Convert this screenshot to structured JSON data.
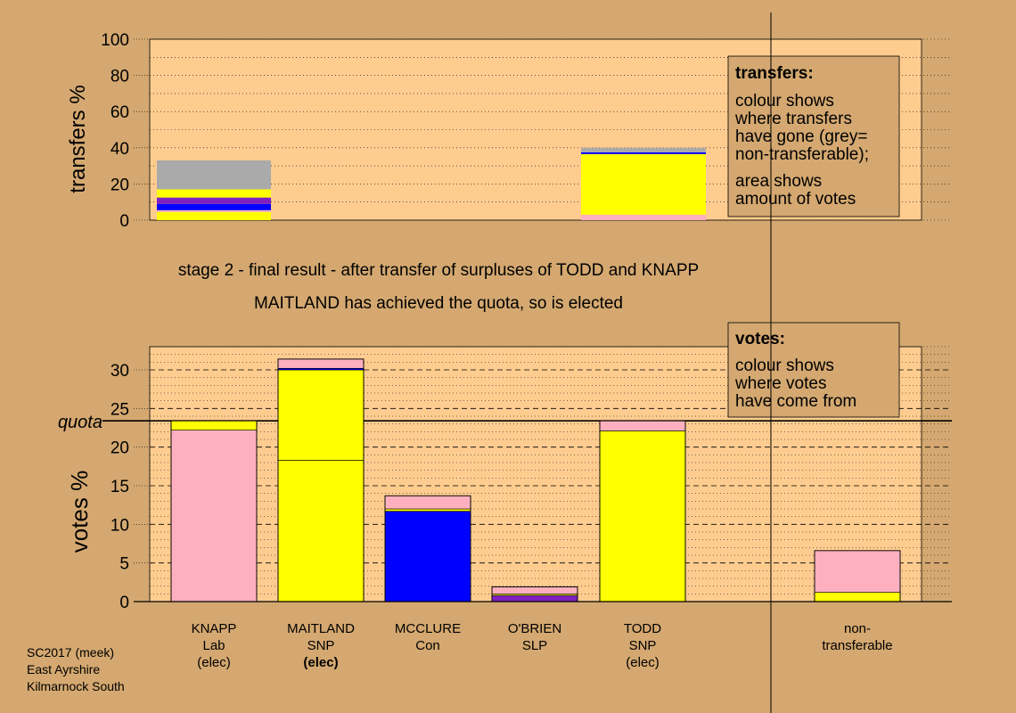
{
  "chart_data": [
    {
      "type": "bar",
      "ylabel": "transfers %",
      "ylim": [
        0,
        100
      ],
      "yticks": [
        0,
        20,
        40,
        60,
        80,
        100
      ],
      "grid": "dotted every 10",
      "bars": [
        {
          "name": "knapp-transfers",
          "segments": [
            {
              "value": 4.5,
              "color": "#ffff00"
            },
            {
              "value": 1.0,
              "color": "#ffb0c0"
            },
            {
              "value": 3.5,
              "color": "#0000ff"
            },
            {
              "value": 3.5,
              "color": "#8020c0"
            },
            {
              "value": 4.5,
              "color": "#ffff00"
            },
            {
              "value": 16.0,
              "color": "#aaaaaa"
            }
          ]
        },
        {
          "name": "todd-transfers",
          "segments": [
            {
              "value": 3.0,
              "color": "#ffb0c0"
            },
            {
              "value": 33.5,
              "color": "#ffff00"
            },
            {
              "value": 1.0,
              "color": "#0000ff"
            },
            {
              "value": 2.5,
              "color": "#aaaaaa"
            }
          ]
        }
      ],
      "legend": {
        "title": "transfers:",
        "lines": [
          "colour shows",
          "where transfers",
          "have gone (grey=",
          "non-transferable);"
        ],
        "lines2": [
          "area shows",
          "amount of votes"
        ]
      }
    },
    {
      "type": "bar",
      "ylabel": "votes %",
      "ylim": [
        0,
        33
      ],
      "yticks": [
        0,
        5,
        10,
        15,
        20,
        25,
        30
      ],
      "quota": 23.4,
      "quota_label": "quota",
      "categories": [
        {
          "name": "KNAPP",
          "party": "Lab",
          "note": "(elec)",
          "bold_note": false
        },
        {
          "name": "MAITLAND",
          "party": "SNP",
          "note": "(elec)",
          "bold_note": true
        },
        {
          "name": "MCCLURE",
          "party": "Con",
          "note": "",
          "bold_note": false
        },
        {
          "name": "O'BRIEN",
          "party": "SLP",
          "note": "",
          "bold_note": false
        },
        {
          "name": "TODD",
          "party": "SNP",
          "note": "(elec)",
          "bold_note": false
        },
        {
          "name": "non-",
          "party": "transferable",
          "note": "",
          "bold_note": false
        }
      ],
      "bars": [
        {
          "slot": 0,
          "segments": [
            {
              "value": 22.2,
              "color": "#ffb0c0"
            },
            {
              "value": 1.2,
              "color": "#ffff00"
            }
          ]
        },
        {
          "slot": 1,
          "segments": [
            {
              "value": 18.3,
              "color": "#ffff00"
            },
            {
              "value": 11.7,
              "color": "#ffff00"
            },
            {
              "value": 0.2,
              "color": "#0000ff"
            },
            {
              "value": 1.2,
              "color": "#ffb0c0"
            }
          ]
        },
        {
          "slot": 2,
          "segments": [
            {
              "value": 11.7,
              "color": "#0000ff"
            },
            {
              "value": 0.3,
              "color": "#ffff00"
            },
            {
              "value": 1.7,
              "color": "#ffb0c0"
            }
          ]
        },
        {
          "slot": 3,
          "segments": [
            {
              "value": 0.8,
              "color": "#8020c0"
            },
            {
              "value": 0.2,
              "color": "#ffff00"
            },
            {
              "value": 0.9,
              "color": "#ffb0c0"
            }
          ]
        },
        {
          "slot": 4,
          "segments": [
            {
              "value": 22.1,
              "color": "#ffff00"
            },
            {
              "value": 1.3,
              "color": "#ffb0c0"
            }
          ]
        },
        {
          "slot": 6,
          "segments": [
            {
              "value": 1.2,
              "color": "#ffff00"
            },
            {
              "value": 5.4,
              "color": "#ffb0c0"
            }
          ]
        }
      ],
      "legend": {
        "title": "votes:",
        "lines": [
          "colour shows",
          "where votes",
          "have come from"
        ]
      }
    }
  ],
  "captions": {
    "line1": "stage 2 - final result - after transfer of surpluses of TODD and KNAPP",
    "line2": "MAITLAND has achieved the quota, so is elected"
  },
  "footer": {
    "line1": "SC2017 (meek)",
    "line2": "East Ayrshire",
    "line3": "Kilmarnock South"
  },
  "colors": {
    "background": "#d4a870",
    "plot_area": "#ffcc90",
    "legend_box": "#d4a870"
  }
}
